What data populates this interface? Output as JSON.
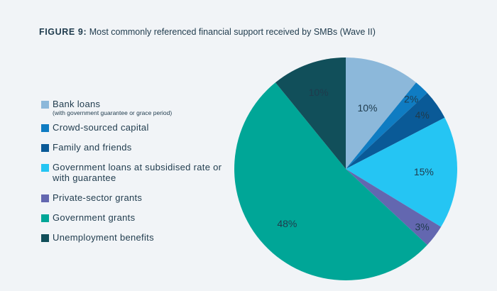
{
  "figure": {
    "number": "FIGURE 9:",
    "caption": "Most commonly referenced financial support received by SMBs (Wave II)"
  },
  "chart_data": {
    "type": "pie",
    "title": "FIGURE 9: Most commonly referenced financial support received by SMBs (Wave II)",
    "unit": "%",
    "legend_placement": "left",
    "slices": [
      {
        "name": "Bank loans",
        "note": "(with government guarantee or grace period)",
        "value": 10,
        "label": "10%",
        "color": "#8cb8da"
      },
      {
        "name": "Crowd-sourced capital",
        "value": 2,
        "label": "2%",
        "color": "#0f7cc2"
      },
      {
        "name": "Family and friends",
        "value": 4,
        "label": "4%",
        "color": "#0a5a97"
      },
      {
        "name": "Government loans at subsidised rate or with guarantee",
        "value": 15,
        "label": "15%",
        "color": "#25c5f3"
      },
      {
        "name": "Private-sector grants",
        "value": 3,
        "label": "3%",
        "color": "#6367b0"
      },
      {
        "name": "Government grants",
        "value": 48,
        "label": "48%",
        "color": "#00a697"
      },
      {
        "name": "Unemployment benefits",
        "value": 10,
        "label": "10%",
        "color": "#114f5a"
      }
    ]
  },
  "colors": {
    "background": "#f1f4f7",
    "text": "#1f3b4d"
  }
}
